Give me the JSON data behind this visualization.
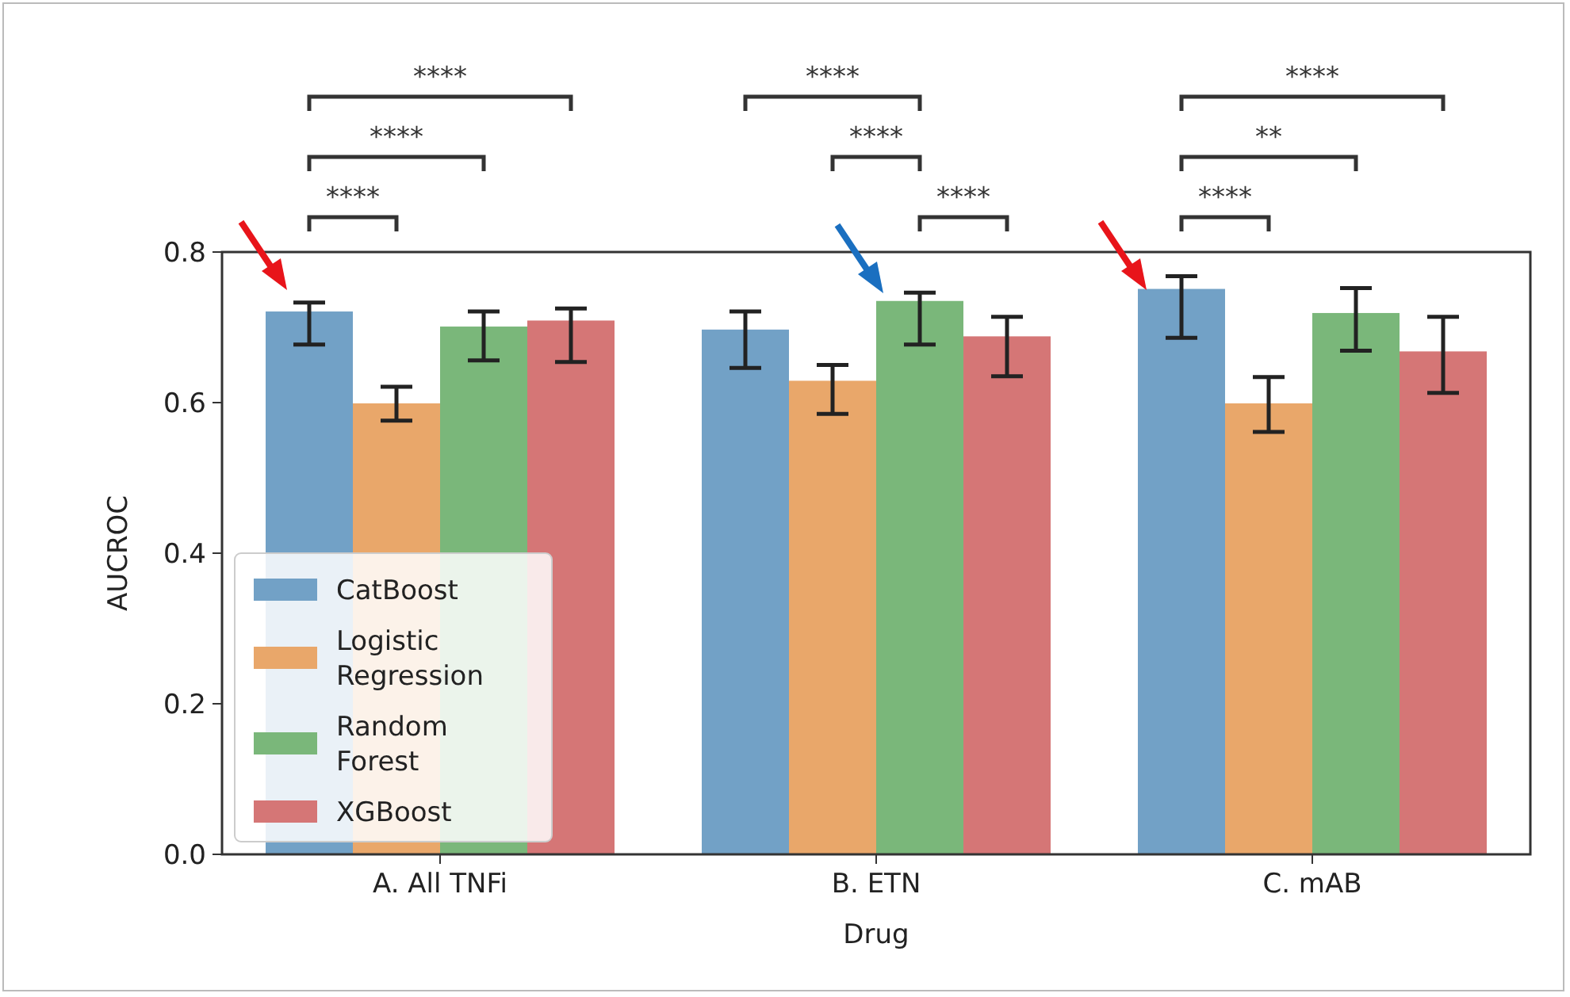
{
  "chart_data": {
    "type": "bar",
    "xlabel": "Drug",
    "ylabel": "AUCROC",
    "categories": [
      "A. All TNFi",
      "B. ETN",
      "C. mAB"
    ],
    "series": [
      {
        "name": "CatBoost",
        "color": "#72a1c6",
        "values": [
          0.721,
          0.697,
          0.751
        ],
        "errors": [
          [
            0.677,
            0.733
          ],
          [
            0.646,
            0.721
          ],
          [
            0.686,
            0.768
          ]
        ]
      },
      {
        "name": "Logistic Regression",
        "color": "#e9a76a",
        "values": [
          0.599,
          0.629,
          0.599
        ],
        "errors": [
          [
            0.576,
            0.621
          ],
          [
            0.585,
            0.65
          ],
          [
            0.561,
            0.634
          ]
        ]
      },
      {
        "name": "Random Forest",
        "color": "#7ab77a",
        "values": [
          0.701,
          0.735,
          0.719
        ],
        "errors": [
          [
            0.656,
            0.721
          ],
          [
            0.677,
            0.746
          ],
          [
            0.669,
            0.752
          ]
        ]
      },
      {
        "name": "XGBoost",
        "color": "#d57676",
        "values": [
          0.709,
          0.688,
          0.668
        ],
        "errors": [
          [
            0.654,
            0.725
          ],
          [
            0.635,
            0.714
          ],
          [
            0.613,
            0.714
          ]
        ]
      }
    ],
    "ylim": [
      0,
      0.8
    ],
    "yticks": [
      {
        "value": 0,
        "label": "0.0"
      },
      {
        "value": 0.2,
        "label": "0.2"
      },
      {
        "value": 0.4,
        "label": "0.4"
      },
      {
        "value": 0.6,
        "label": "0.6"
      },
      {
        "value": 0.8,
        "label": "0.8"
      }
    ],
    "grid": false,
    "legend": "bottom left",
    "annotations": [
      "****",
      "****",
      "****",
      "****",
      "****",
      "****",
      "****",
      "**",
      "****"
    ]
  }
}
